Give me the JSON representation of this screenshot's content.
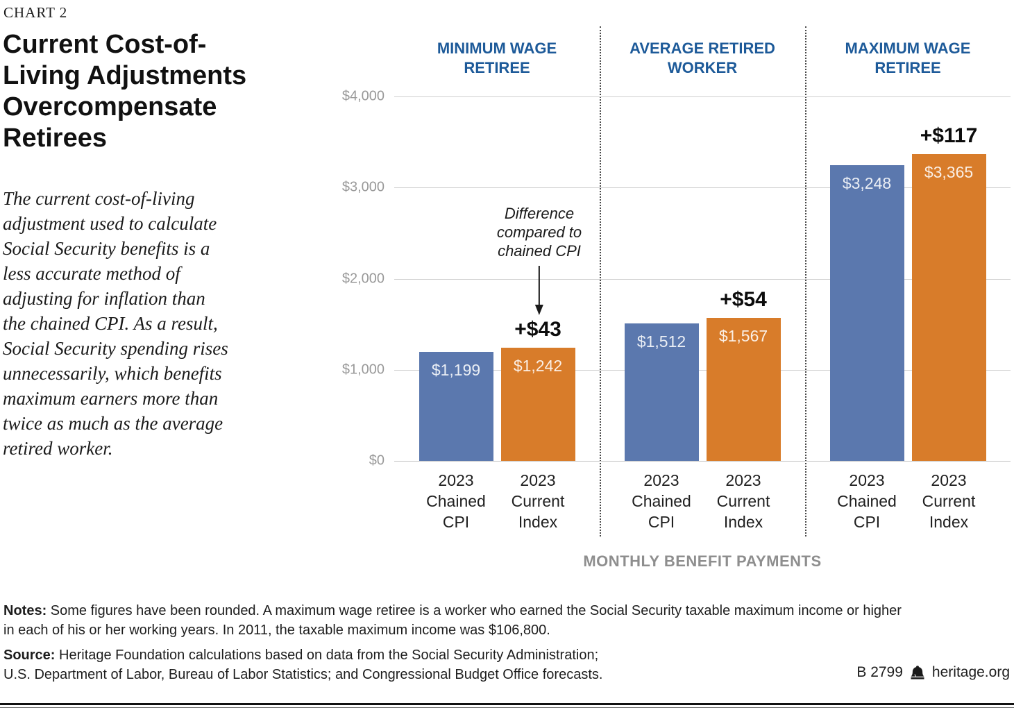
{
  "kicker": "CHART 2",
  "title_lines": [
    "Current Cost-of-",
    "Living Adjustments",
    "Overcompensate",
    "Retirees"
  ],
  "description_lines": [
    "The current cost-of-living",
    "adjustment used to calculate",
    "Social Security benefits is a",
    "less accurate method of",
    "adjusting for inflation than",
    "the chained CPI. As a result,",
    "Social Security spending rises",
    "unnecessarily, which benefits",
    "maximum earners more than",
    "twice as much as the average",
    "retired worker."
  ],
  "chart": {
    "group_header_lines": [
      [
        "MINIMUM WAGE",
        "RETIREE"
      ],
      [
        "AVERAGE RETIRED",
        "WORKER"
      ],
      [
        "MAXIMUM WAGE",
        "RETIREE"
      ]
    ],
    "y_tick_labels": [
      "$4,000",
      "$3,000",
      "$2,000",
      "$1,000",
      "$0"
    ],
    "annotation_lines": [
      "Difference",
      "compared to",
      "chained CPI"
    ]
  },
  "chart_data": {
    "type": "bar",
    "title": "Current Cost-of-Living Adjustments Overcompensate Retirees",
    "categories": [
      "Minimum Wage Retiree",
      "Average Retired Worker",
      "Maximum Wage Retiree"
    ],
    "series": [
      {
        "name": "2023 Chained CPI",
        "values": [
          1199,
          1512,
          3248
        ],
        "labels": [
          "$1,199",
          "$1,512",
          "$3,248"
        ],
        "color": "#5b78ae",
        "tick_lines": [
          "2023",
          "Chained",
          "CPI"
        ]
      },
      {
        "name": "2023 Current Index",
        "values": [
          1242,
          1567,
          3365
        ],
        "labels": [
          "$1,242",
          "$1,567",
          "$3,365"
        ],
        "color": "#d87c2a",
        "tick_lines": [
          "2023",
          "Current",
          "Index"
        ]
      }
    ],
    "differences": [
      "+$43",
      "+$54",
      "+$117"
    ],
    "difference_note": "Difference compared to chained CPI",
    "xlabel": "MONTHLY BENEFIT PAYMENTS",
    "ylabel": "",
    "ylim": [
      0,
      4000
    ],
    "yticks": [
      0,
      1000,
      2000,
      3000,
      4000
    ],
    "grid": true,
    "legend_position": "none"
  },
  "notes": {
    "label": "Notes:",
    "lines": [
      "Some figures have been rounded. A maximum wage retiree is a worker who earned the Social Security taxable maximum income or higher",
      "in each of his or her working years. In 2011, the taxable maximum income was $106,800."
    ]
  },
  "source": {
    "label": "Source:",
    "lines": [
      "Heritage Foundation calculations based on data from the Social Security Administration;",
      "U.S. Department of Labor, Bureau of Labor Statistics; and Congressional Budget Office forecasts."
    ]
  },
  "footer": {
    "report_id": "B 2799",
    "site": "heritage.org",
    "icon": "liberty-bell-icon"
  },
  "colors": {
    "bar_blue": "#5b78ae",
    "bar_orange": "#d87c2a",
    "header_blue": "#1d5a99",
    "axis_gray": "#999999",
    "gridline": "#cfcfcf"
  }
}
